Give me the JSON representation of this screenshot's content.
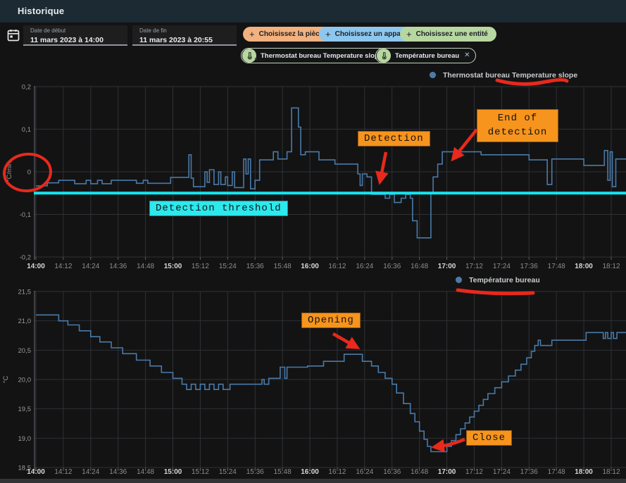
{
  "header": {
    "title": "Historique"
  },
  "toolbar": {
    "date_start": {
      "label": "Date de début",
      "value": "11 mars 2023 à 14:00"
    },
    "date_end": {
      "label": "Date de fin",
      "value": "11 mars 2023 à 20:55"
    },
    "filter_chips": [
      {
        "label": "Choisissez la pièce",
        "plus": "+",
        "color": "#f2b17e"
      },
      {
        "label": "Choisissez un appareil",
        "plus": "+",
        "color": "#8ec7ee"
      },
      {
        "label": "Choisissez une entité",
        "plus": "+",
        "color": "#b7d7a0"
      }
    ],
    "entity_chips": [
      {
        "label": "Thermostat bureau Temperature slope",
        "close": "✕"
      },
      {
        "label": "Température bureau",
        "close": "✕"
      }
    ]
  },
  "chart_data": [
    {
      "type": "line",
      "step": true,
      "legend": "Thermostat bureau Temperature slope",
      "unit": "°C/min",
      "color": "#4a7aa8",
      "ylim": [
        -0.2,
        0.2
      ],
      "ytick_values": [
        0.2,
        0.1,
        0,
        -0.1,
        -0.2
      ],
      "ytick_labels": [
        "0,2",
        "0,1",
        "0",
        "-0,1",
        "-0,2"
      ],
      "minutes_per_tick": 12,
      "x_tick_labels": [
        "14:00",
        "14:12",
        "14:24",
        "14:36",
        "14:48",
        "15:00",
        "15:12",
        "15:24",
        "15:36",
        "15:48",
        "16:00",
        "16:12",
        "16:24",
        "16:36",
        "16:48",
        "17:00",
        "17:12",
        "17:24",
        "17:36",
        "17:48",
        "18:00",
        "18:12"
      ],
      "threshold": {
        "value": -0.05,
        "color": "#14e6ef"
      },
      "points": [
        [
          0,
          -0.033
        ],
        [
          5,
          -0.026
        ],
        [
          10,
          -0.02
        ],
        [
          15,
          -0.02
        ],
        [
          17,
          -0.028
        ],
        [
          22,
          -0.02
        ],
        [
          24,
          -0.028
        ],
        [
          27,
          -0.02
        ],
        [
          29,
          -0.028
        ],
        [
          33,
          -0.02
        ],
        [
          44,
          -0.027
        ],
        [
          47,
          -0.02
        ],
        [
          49,
          -0.027
        ],
        [
          59,
          -0.013
        ],
        [
          66,
          -0.013
        ],
        [
          67,
          0.04
        ],
        [
          68,
          -0.015
        ],
        [
          69,
          -0.035
        ],
        [
          72,
          -0.035
        ],
        [
          74,
          0.0
        ],
        [
          75,
          -0.025
        ],
        [
          76,
          0.005
        ],
        [
          78,
          -0.03
        ],
        [
          80,
          0.0
        ],
        [
          81,
          -0.03
        ],
        [
          83,
          -0.012
        ],
        [
          84,
          -0.032
        ],
        [
          86,
          0.0
        ],
        [
          87,
          -0.037
        ],
        [
          90,
          -0.037
        ],
        [
          91,
          0.03
        ],
        [
          92,
          -0.005
        ],
        [
          93,
          0.03
        ],
        [
          94,
          -0.04
        ],
        [
          96,
          -0.02
        ],
        [
          98,
          0.028
        ],
        [
          102,
          0.028
        ],
        [
          104,
          0.047
        ],
        [
          106,
          0.03
        ],
        [
          108,
          0.03
        ],
        [
          110,
          0.047
        ],
        [
          112,
          0.15
        ],
        [
          115,
          0.105
        ],
        [
          116,
          0.04
        ],
        [
          118,
          0.047
        ],
        [
          124,
          0.028
        ],
        [
          131,
          0.018
        ],
        [
          140,
          0.018
        ],
        [
          141,
          -0.005
        ],
        [
          142,
          -0.032
        ],
        [
          143,
          -0.005
        ],
        [
          145,
          -0.012
        ],
        [
          147,
          -0.053
        ],
        [
          152,
          -0.053
        ],
        [
          153,
          -0.062
        ],
        [
          155,
          -0.053
        ],
        [
          157,
          -0.072
        ],
        [
          160,
          -0.062
        ],
        [
          162,
          -0.053
        ],
        [
          164,
          -0.062
        ],
        [
          165,
          -0.115
        ],
        [
          167,
          -0.155
        ],
        [
          172,
          -0.155
        ],
        [
          173,
          -0.05
        ],
        [
          174,
          -0.012
        ],
        [
          176,
          0.018
        ],
        [
          178,
          0.047
        ],
        [
          195,
          0.04
        ],
        [
          216,
          0.028
        ],
        [
          224,
          -0.03
        ],
        [
          226,
          0.03
        ],
        [
          239,
          0.03
        ],
        [
          240,
          0.015
        ],
        [
          248,
          0.015
        ],
        [
          249,
          0.05
        ],
        [
          250.5,
          -0.02
        ],
        [
          251.5,
          0.047
        ],
        [
          252.5,
          -0.035
        ],
        [
          254,
          0.03
        ],
        [
          258.5,
          0.03
        ]
      ]
    },
    {
      "type": "line",
      "step": true,
      "legend": "Température bureau",
      "unit": "°C",
      "color": "#4a7aa8",
      "ylim": [
        18.5,
        21.5
      ],
      "ytick_values": [
        21.5,
        21.0,
        20.5,
        20.0,
        19.5,
        19.0,
        18.5
      ],
      "ytick_labels": [
        "21,5",
        "21,0",
        "20,5",
        "20,0",
        "19,5",
        "19,0",
        "18,5"
      ],
      "minutes_per_tick": 12,
      "x_tick_labels": [
        "14:00",
        "14:12",
        "14:24",
        "14:36",
        "14:48",
        "15:00",
        "15:12",
        "15:24",
        "15:36",
        "15:48",
        "16:00",
        "16:12",
        "16:24",
        "16:36",
        "16:48",
        "17:00",
        "17:12",
        "17:24",
        "17:36",
        "17:48",
        "18:00",
        "18:12"
      ],
      "points": [
        [
          0,
          21.1
        ],
        [
          10,
          21.0
        ],
        [
          14,
          20.93
        ],
        [
          19,
          20.83
        ],
        [
          24,
          20.73
        ],
        [
          28,
          20.64
        ],
        [
          33,
          20.54
        ],
        [
          38,
          20.44
        ],
        [
          44,
          20.33
        ],
        [
          50,
          20.23
        ],
        [
          55,
          20.12
        ],
        [
          60,
          20.02
        ],
        [
          64,
          19.92
        ],
        [
          66,
          19.83
        ],
        [
          68,
          19.92
        ],
        [
          70,
          19.83
        ],
        [
          72,
          19.92
        ],
        [
          74,
          19.83
        ],
        [
          76,
          19.92
        ],
        [
          78,
          19.83
        ],
        [
          80,
          19.92
        ],
        [
          82,
          19.83
        ],
        [
          85,
          19.92
        ],
        [
          98,
          19.92
        ],
        [
          99,
          20.0
        ],
        [
          100,
          19.92
        ],
        [
          102,
          20.02
        ],
        [
          107,
          20.21
        ],
        [
          109,
          20.02
        ],
        [
          110,
          20.21
        ],
        [
          119,
          20.23
        ],
        [
          126,
          20.31
        ],
        [
          135,
          20.43
        ],
        [
          143,
          20.31
        ],
        [
          147,
          20.23
        ],
        [
          150,
          20.12
        ],
        [
          153,
          20.02
        ],
        [
          156,
          19.92
        ],
        [
          158,
          19.77
        ],
        [
          161,
          19.59
        ],
        [
          164,
          19.42
        ],
        [
          166,
          19.28
        ],
        [
          168,
          19.12
        ],
        [
          170,
          18.98
        ],
        [
          171.5,
          18.86
        ],
        [
          173,
          18.77
        ],
        [
          179,
          18.77
        ],
        [
          180,
          18.86
        ],
        [
          182,
          18.96
        ],
        [
          184,
          19.06
        ],
        [
          186,
          19.16
        ],
        [
          188,
          19.26
        ],
        [
          190,
          19.36
        ],
        [
          192,
          19.46
        ],
        [
          194,
          19.56
        ],
        [
          196,
          19.66
        ],
        [
          198,
          19.76
        ],
        [
          201,
          19.86
        ],
        [
          204,
          19.96
        ],
        [
          207,
          20.06
        ],
        [
          210,
          20.16
        ],
        [
          212.5,
          20.26
        ],
        [
          215,
          20.37
        ],
        [
          217,
          20.48
        ],
        [
          218.5,
          20.58
        ],
        [
          220,
          20.67
        ],
        [
          221,
          20.58
        ],
        [
          226,
          20.67
        ],
        [
          241,
          20.8
        ],
        [
          247.5,
          20.8
        ],
        [
          248.5,
          20.7
        ],
        [
          249.5,
          20.8
        ],
        [
          250.5,
          20.7
        ],
        [
          252,
          20.8
        ],
        [
          253,
          20.7
        ],
        [
          254.5,
          20.8
        ],
        [
          258.5,
          20.8
        ]
      ]
    }
  ],
  "annotations": {
    "detection": {
      "text": "Detection",
      "bg": "#f7941d"
    },
    "end_of_detection": {
      "text": "End of detection",
      "bg": "#f7941d"
    },
    "detection_threshold": {
      "text": "Detection threshold",
      "bg": "#2ce9ed"
    },
    "opening": {
      "text": "Opening",
      "bg": "#f7941d"
    },
    "close": {
      "text": "Close",
      "bg": "#f7941d"
    },
    "marker_color": "#e8291c"
  }
}
